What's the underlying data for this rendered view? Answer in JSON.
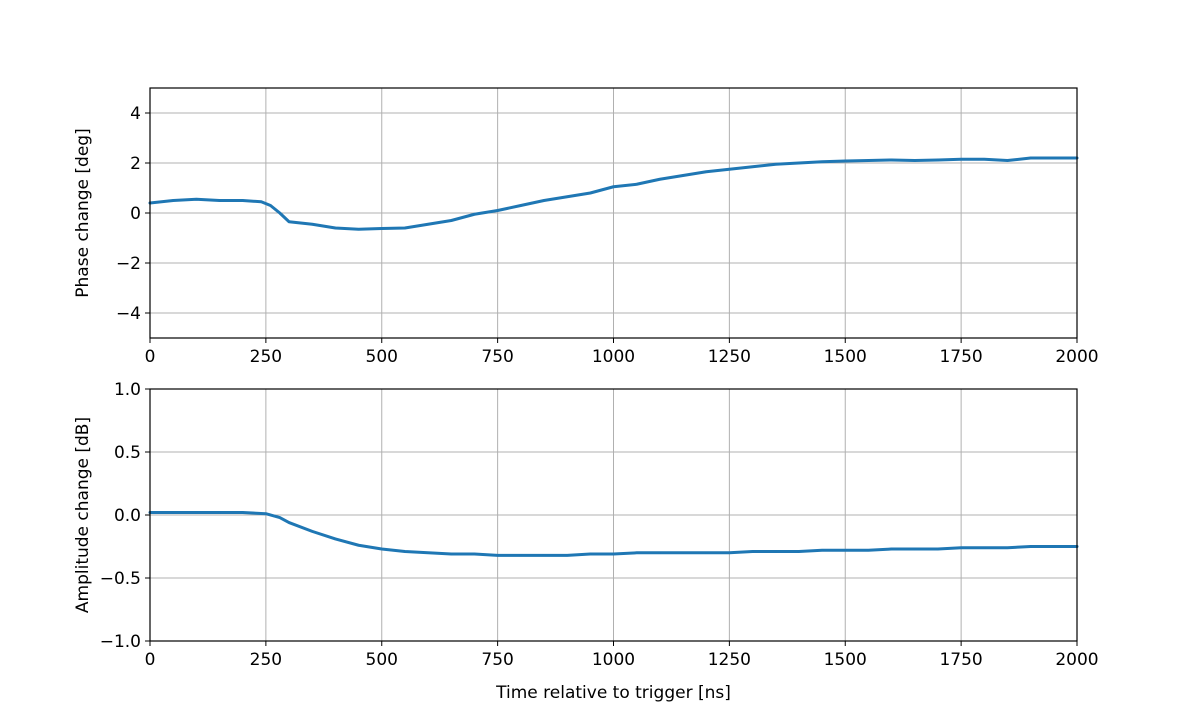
{
  "chart_data": [
    {
      "type": "line",
      "xlabel": "",
      "ylabel": "Phase change [deg]",
      "xlim": [
        0,
        2000
      ],
      "ylim": [
        -5,
        5
      ],
      "xticks": [
        0,
        250,
        500,
        750,
        1000,
        1250,
        1500,
        1750,
        2000
      ],
      "xtick_labels": [
        "0",
        "250",
        "500",
        "750",
        "1000",
        "1250",
        "1500",
        "1750",
        "2000"
      ],
      "yticks": [
        -4,
        -2,
        0,
        2,
        4
      ],
      "ytick_labels": [
        "−4",
        "−2",
        "0",
        "2",
        "4"
      ],
      "grid": true,
      "series": [
        {
          "color": "#1f77b4",
          "x": [
            0,
            50,
            100,
            150,
            200,
            240,
            260,
            280,
            300,
            350,
            400,
            450,
            500,
            550,
            600,
            650,
            700,
            750,
            800,
            850,
            900,
            950,
            1000,
            1050,
            1100,
            1150,
            1200,
            1250,
            1300,
            1350,
            1400,
            1450,
            1500,
            1550,
            1600,
            1650,
            1700,
            1750,
            1800,
            1850,
            1900,
            1950,
            2000
          ],
          "y": [
            0.4,
            0.5,
            0.55,
            0.5,
            0.5,
            0.45,
            0.3,
            0.0,
            -0.35,
            -0.45,
            -0.6,
            -0.65,
            -0.62,
            -0.6,
            -0.45,
            -0.3,
            -0.05,
            0.1,
            0.3,
            0.5,
            0.65,
            0.8,
            1.05,
            1.15,
            1.35,
            1.5,
            1.65,
            1.75,
            1.85,
            1.95,
            2.0,
            2.05,
            2.08,
            2.1,
            2.12,
            2.1,
            2.12,
            2.15,
            2.15,
            2.1,
            2.2,
            2.2,
            2.2
          ]
        }
      ]
    },
    {
      "type": "line",
      "xlabel": "Time relative to trigger [ns]",
      "ylabel": "Amplitude change [dB]",
      "xlim": [
        0,
        2000
      ],
      "ylim": [
        -1.0,
        1.0
      ],
      "xticks": [
        0,
        250,
        500,
        750,
        1000,
        1250,
        1500,
        1750,
        2000
      ],
      "xtick_labels": [
        "0",
        "250",
        "500",
        "750",
        "1000",
        "1250",
        "1500",
        "1750",
        "2000"
      ],
      "yticks": [
        -1.0,
        -0.5,
        0.0,
        0.5,
        1.0
      ],
      "ytick_labels": [
        "−1.0",
        "−0.5",
        "0.0",
        "0.5",
        "1.0"
      ],
      "grid": true,
      "series": [
        {
          "color": "#1f77b4",
          "x": [
            0,
            50,
            100,
            150,
            200,
            250,
            280,
            300,
            350,
            400,
            450,
            500,
            550,
            600,
            650,
            700,
            750,
            800,
            850,
            900,
            950,
            1000,
            1050,
            1100,
            1150,
            1200,
            1250,
            1300,
            1350,
            1400,
            1450,
            1500,
            1550,
            1600,
            1650,
            1700,
            1750,
            1800,
            1850,
            1900,
            1950,
            2000
          ],
          "y": [
            0.02,
            0.02,
            0.02,
            0.02,
            0.02,
            0.01,
            -0.02,
            -0.06,
            -0.13,
            -0.19,
            -0.24,
            -0.27,
            -0.29,
            -0.3,
            -0.31,
            -0.31,
            -0.32,
            -0.32,
            -0.32,
            -0.32,
            -0.31,
            -0.31,
            -0.3,
            -0.3,
            -0.3,
            -0.3,
            -0.3,
            -0.29,
            -0.29,
            -0.29,
            -0.28,
            -0.28,
            -0.28,
            -0.27,
            -0.27,
            -0.27,
            -0.26,
            -0.26,
            -0.26,
            -0.25,
            -0.25,
            -0.25
          ]
        }
      ]
    }
  ]
}
